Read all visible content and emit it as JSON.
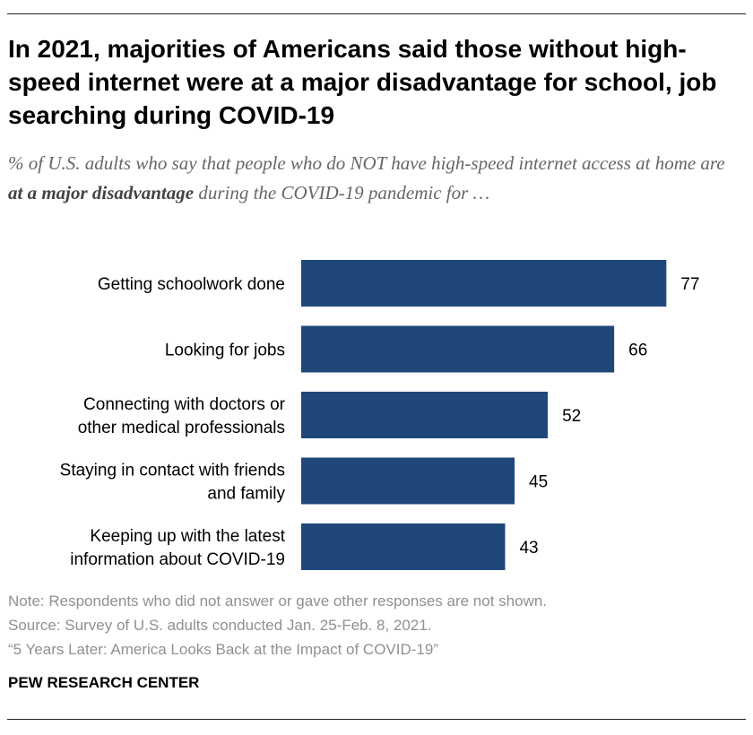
{
  "header": {
    "title": "In 2021, majorities of Americans said those without high-speed internet were at a major disadvantage for school, job searching during COVID-19",
    "subtitle_pre": "% of U.S. adults who say that people who do NOT have high-speed internet access at home are ",
    "subtitle_emphasis": "at a major disadvantage",
    "subtitle_post": " during the COVID-19 pandemic for …"
  },
  "chart_data": {
    "type": "bar",
    "orientation": "horizontal",
    "title": "",
    "xlabel": "",
    "ylabel": "",
    "xlim": [
      0,
      100
    ],
    "categories": [
      [
        "Getting schoolwork done"
      ],
      [
        "Looking for jobs"
      ],
      [
        "Connecting with doctors or",
        "other medical professionals"
      ],
      [
        "Staying in contact with friends",
        "and family"
      ],
      [
        "Keeping up with the latest",
        "information about COVID-19"
      ]
    ],
    "values": [
      77,
      66,
      52,
      45,
      43
    ],
    "bar_color": "#1f477a",
    "grid": false
  },
  "footer": {
    "note": "Note: Respondents who did not answer or gave other responses are not shown.",
    "source": "Source: Survey of U.S. adults conducted Jan. 25-Feb. 8, 2021.",
    "report": "“5 Years Later: America Looks Back at the Impact of COVID-19”",
    "brand": "PEW RESEARCH CENTER"
  }
}
